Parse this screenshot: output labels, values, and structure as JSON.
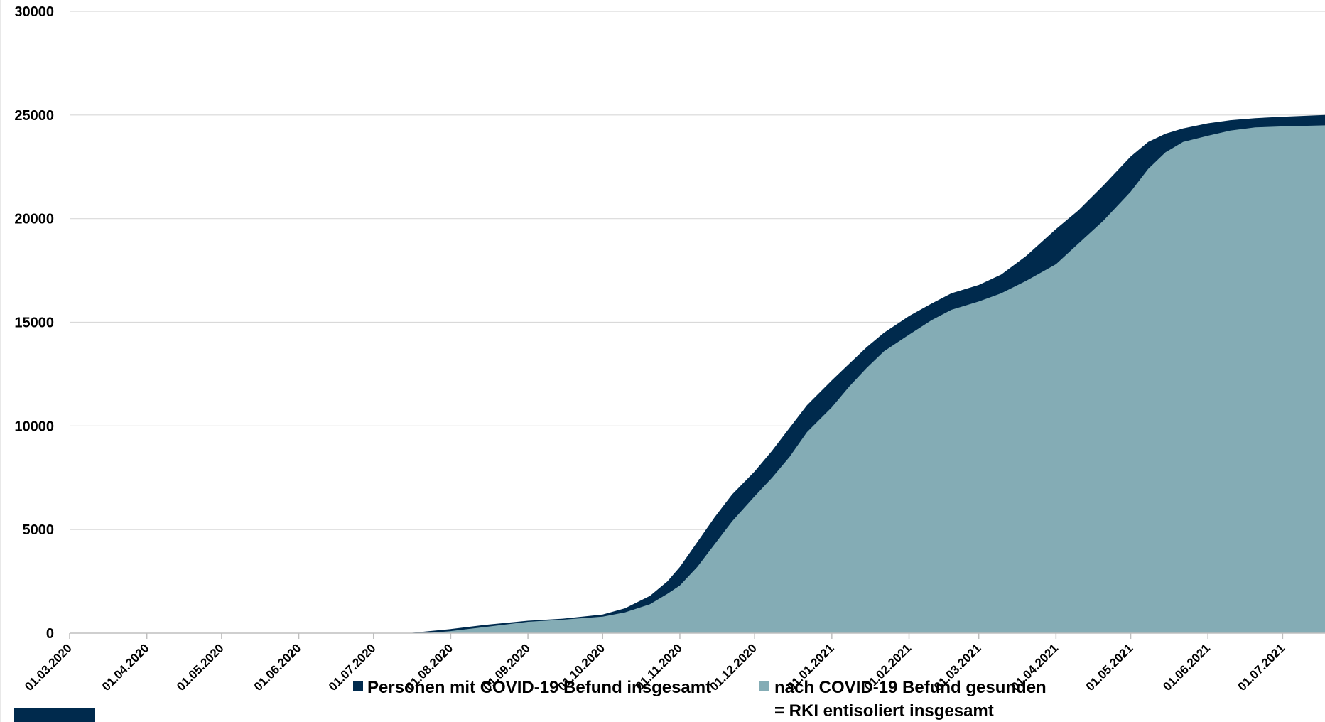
{
  "chart_data": {
    "type": "area",
    "title": "",
    "xlabel": "",
    "ylabel": "",
    "ylim": [
      0,
      30000
    ],
    "xlim": [
      "01.03.2020",
      "18.07.2021"
    ],
    "grid": "horizontal",
    "legend_position": "bottom",
    "y_ticks": [
      "0",
      "5000",
      "10000",
      "15000",
      "20000",
      "25000",
      "30000"
    ],
    "x_ticks": [
      "01.03.2020",
      "01.04.2020",
      "01.05.2020",
      "01.06.2020",
      "01.07.2020",
      "01.08.2020",
      "01.09.2020",
      "01.10.2020",
      "01.11.2020",
      "01.12.2020",
      "01.01.2021",
      "01.02.2021",
      "01.03.2021",
      "01.04.2021",
      "01.05.2021",
      "01.06.2021",
      "01.07.2021"
    ],
    "series": [
      {
        "name": "Personen mit COVID-19 Befund insgesamt",
        "color": "#002a4d",
        "points": [
          [
            "01.03.2020",
            0
          ],
          [
            "15.07.2020",
            0
          ],
          [
            "01.08.2020",
            200
          ],
          [
            "15.08.2020",
            400
          ],
          [
            "01.09.2020",
            600
          ],
          [
            "15.09.2020",
            700
          ],
          [
            "01.10.2020",
            900
          ],
          [
            "10.10.2020",
            1200
          ],
          [
            "20.10.2020",
            1800
          ],
          [
            "27.10.2020",
            2500
          ],
          [
            "01.11.2020",
            3200
          ],
          [
            "08.11.2020",
            4400
          ],
          [
            "15.11.2020",
            5600
          ],
          [
            "22.11.2020",
            6700
          ],
          [
            "01.12.2020",
            7800
          ],
          [
            "08.12.2020",
            8800
          ],
          [
            "15.12.2020",
            9900
          ],
          [
            "22.12.2020",
            11000
          ],
          [
            "01.01.2021",
            12200
          ],
          [
            "08.01.2021",
            13000
          ],
          [
            "15.01.2021",
            13800
          ],
          [
            "22.01.2021",
            14500
          ],
          [
            "01.02.2021",
            15300
          ],
          [
            "10.02.2021",
            15900
          ],
          [
            "18.02.2021",
            16400
          ],
          [
            "01.03.2021",
            16800
          ],
          [
            "10.03.2021",
            17300
          ],
          [
            "20.03.2021",
            18200
          ],
          [
            "01.04.2021",
            19500
          ],
          [
            "10.04.2021",
            20400
          ],
          [
            "20.04.2021",
            21600
          ],
          [
            "01.05.2021",
            23000
          ],
          [
            "08.05.2021",
            23700
          ],
          [
            "15.05.2021",
            24100
          ],
          [
            "22.05.2021",
            24350
          ],
          [
            "01.06.2021",
            24600
          ],
          [
            "10.06.2021",
            24750
          ],
          [
            "20.06.2021",
            24850
          ],
          [
            "01.07.2021",
            24920
          ],
          [
            "18.07.2021",
            25000
          ]
        ]
      },
      {
        "name": "nach COVID-19 Befund gesunden = RKI entisoliert insgesamt",
        "legend_lines": [
          "nach COVID-19 Befund gesunden",
          "= RKI entisoliert insgesamt"
        ],
        "color": "#84acb5",
        "points": [
          [
            "01.03.2020",
            0
          ],
          [
            "22.07.2020",
            0
          ],
          [
            "01.08.2020",
            100
          ],
          [
            "15.08.2020",
            300
          ],
          [
            "01.09.2020",
            550
          ],
          [
            "15.09.2020",
            650
          ],
          [
            "01.10.2020",
            800
          ],
          [
            "10.10.2020",
            1000
          ],
          [
            "20.10.2020",
            1400
          ],
          [
            "27.10.2020",
            1900
          ],
          [
            "01.11.2020",
            2300
          ],
          [
            "08.11.2020",
            3200
          ],
          [
            "15.11.2020",
            4300
          ],
          [
            "22.11.2020",
            5400
          ],
          [
            "01.12.2020",
            6600
          ],
          [
            "08.12.2020",
            7500
          ],
          [
            "15.12.2020",
            8500
          ],
          [
            "22.12.2020",
            9700
          ],
          [
            "01.01.2021",
            10900
          ],
          [
            "08.01.2021",
            11900
          ],
          [
            "15.01.2021",
            12800
          ],
          [
            "22.01.2021",
            13600
          ],
          [
            "01.02.2021",
            14400
          ],
          [
            "10.02.2021",
            15100
          ],
          [
            "18.02.2021",
            15600
          ],
          [
            "01.03.2021",
            16000
          ],
          [
            "10.03.2021",
            16400
          ],
          [
            "20.03.2021",
            17000
          ],
          [
            "01.04.2021",
            17800
          ],
          [
            "10.04.2021",
            18800
          ],
          [
            "20.04.2021",
            19900
          ],
          [
            "01.05.2021",
            21300
          ],
          [
            "08.05.2021",
            22400
          ],
          [
            "15.05.2021",
            23200
          ],
          [
            "22.05.2021",
            23700
          ],
          [
            "01.06.2021",
            24000
          ],
          [
            "10.06.2021",
            24250
          ],
          [
            "20.06.2021",
            24400
          ],
          [
            "01.07.2021",
            24450
          ],
          [
            "18.07.2021",
            24500
          ]
        ]
      }
    ]
  }
}
